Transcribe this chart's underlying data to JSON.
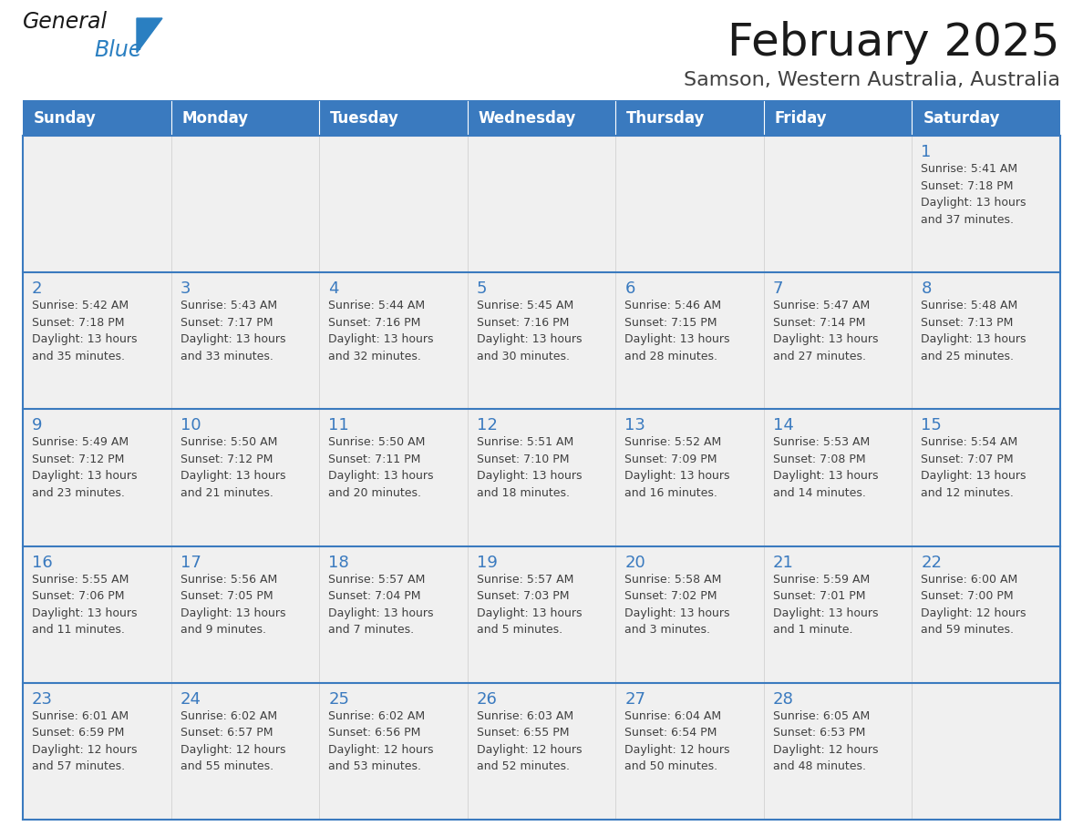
{
  "title": "February 2025",
  "subtitle": "Samson, Western Australia, Australia",
  "header_color": "#3a7abf",
  "header_text_color": "#ffffff",
  "cell_bg_odd": "#f0f0f0",
  "cell_bg_even": "#f8f8f8",
  "day_number_color": "#3a7abf",
  "info_text_color": "#404040",
  "border_color": "#3a7abf",
  "separator_color": "#3a7abf",
  "days_of_week": [
    "Sunday",
    "Monday",
    "Tuesday",
    "Wednesday",
    "Thursday",
    "Friday",
    "Saturday"
  ],
  "weeks": [
    [
      {
        "day": null,
        "info": null
      },
      {
        "day": null,
        "info": null
      },
      {
        "day": null,
        "info": null
      },
      {
        "day": null,
        "info": null
      },
      {
        "day": null,
        "info": null
      },
      {
        "day": null,
        "info": null
      },
      {
        "day": "1",
        "info": "Sunrise: 5:41 AM\nSunset: 7:18 PM\nDaylight: 13 hours\nand 37 minutes."
      }
    ],
    [
      {
        "day": "2",
        "info": "Sunrise: 5:42 AM\nSunset: 7:18 PM\nDaylight: 13 hours\nand 35 minutes."
      },
      {
        "day": "3",
        "info": "Sunrise: 5:43 AM\nSunset: 7:17 PM\nDaylight: 13 hours\nand 33 minutes."
      },
      {
        "day": "4",
        "info": "Sunrise: 5:44 AM\nSunset: 7:16 PM\nDaylight: 13 hours\nand 32 minutes."
      },
      {
        "day": "5",
        "info": "Sunrise: 5:45 AM\nSunset: 7:16 PM\nDaylight: 13 hours\nand 30 minutes."
      },
      {
        "day": "6",
        "info": "Sunrise: 5:46 AM\nSunset: 7:15 PM\nDaylight: 13 hours\nand 28 minutes."
      },
      {
        "day": "7",
        "info": "Sunrise: 5:47 AM\nSunset: 7:14 PM\nDaylight: 13 hours\nand 27 minutes."
      },
      {
        "day": "8",
        "info": "Sunrise: 5:48 AM\nSunset: 7:13 PM\nDaylight: 13 hours\nand 25 minutes."
      }
    ],
    [
      {
        "day": "9",
        "info": "Sunrise: 5:49 AM\nSunset: 7:12 PM\nDaylight: 13 hours\nand 23 minutes."
      },
      {
        "day": "10",
        "info": "Sunrise: 5:50 AM\nSunset: 7:12 PM\nDaylight: 13 hours\nand 21 minutes."
      },
      {
        "day": "11",
        "info": "Sunrise: 5:50 AM\nSunset: 7:11 PM\nDaylight: 13 hours\nand 20 minutes."
      },
      {
        "day": "12",
        "info": "Sunrise: 5:51 AM\nSunset: 7:10 PM\nDaylight: 13 hours\nand 18 minutes."
      },
      {
        "day": "13",
        "info": "Sunrise: 5:52 AM\nSunset: 7:09 PM\nDaylight: 13 hours\nand 16 minutes."
      },
      {
        "day": "14",
        "info": "Sunrise: 5:53 AM\nSunset: 7:08 PM\nDaylight: 13 hours\nand 14 minutes."
      },
      {
        "day": "15",
        "info": "Sunrise: 5:54 AM\nSunset: 7:07 PM\nDaylight: 13 hours\nand 12 minutes."
      }
    ],
    [
      {
        "day": "16",
        "info": "Sunrise: 5:55 AM\nSunset: 7:06 PM\nDaylight: 13 hours\nand 11 minutes."
      },
      {
        "day": "17",
        "info": "Sunrise: 5:56 AM\nSunset: 7:05 PM\nDaylight: 13 hours\nand 9 minutes."
      },
      {
        "day": "18",
        "info": "Sunrise: 5:57 AM\nSunset: 7:04 PM\nDaylight: 13 hours\nand 7 minutes."
      },
      {
        "day": "19",
        "info": "Sunrise: 5:57 AM\nSunset: 7:03 PM\nDaylight: 13 hours\nand 5 minutes."
      },
      {
        "day": "20",
        "info": "Sunrise: 5:58 AM\nSunset: 7:02 PM\nDaylight: 13 hours\nand 3 minutes."
      },
      {
        "day": "21",
        "info": "Sunrise: 5:59 AM\nSunset: 7:01 PM\nDaylight: 13 hours\nand 1 minute."
      },
      {
        "day": "22",
        "info": "Sunrise: 6:00 AM\nSunset: 7:00 PM\nDaylight: 12 hours\nand 59 minutes."
      }
    ],
    [
      {
        "day": "23",
        "info": "Sunrise: 6:01 AM\nSunset: 6:59 PM\nDaylight: 12 hours\nand 57 minutes."
      },
      {
        "day": "24",
        "info": "Sunrise: 6:02 AM\nSunset: 6:57 PM\nDaylight: 12 hours\nand 55 minutes."
      },
      {
        "day": "25",
        "info": "Sunrise: 6:02 AM\nSunset: 6:56 PM\nDaylight: 12 hours\nand 53 minutes."
      },
      {
        "day": "26",
        "info": "Sunrise: 6:03 AM\nSunset: 6:55 PM\nDaylight: 12 hours\nand 52 minutes."
      },
      {
        "day": "27",
        "info": "Sunrise: 6:04 AM\nSunset: 6:54 PM\nDaylight: 12 hours\nand 50 minutes."
      },
      {
        "day": "28",
        "info": "Sunrise: 6:05 AM\nSunset: 6:53 PM\nDaylight: 12 hours\nand 48 minutes."
      },
      {
        "day": null,
        "info": null
      }
    ]
  ],
  "logo_text_general": "General",
  "logo_text_blue": "Blue",
  "logo_color_general": "#1a1a1a",
  "logo_color_blue": "#2a7fc1",
  "logo_triangle_color": "#2a7fc1",
  "title_fontsize": 36,
  "subtitle_fontsize": 16,
  "dow_fontsize": 12,
  "day_num_fontsize": 13,
  "info_fontsize": 9
}
